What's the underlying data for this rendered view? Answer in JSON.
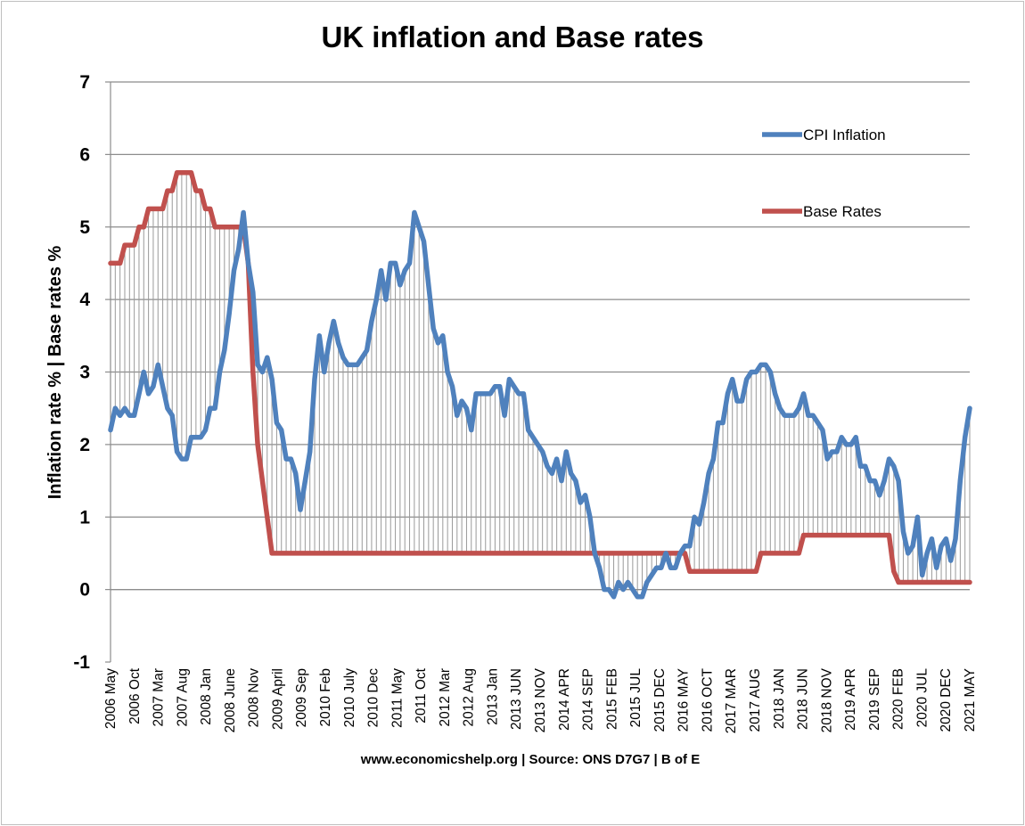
{
  "chart_data": {
    "type": "line",
    "title": "UK inflation and Base rates",
    "ylabel": "Inflation rate %  |  Base rates %",
    "source": "www.economicshelp.org | Source: ONS D7G7  |  B of E",
    "ylim": [
      -1,
      7
    ],
    "yticks": [
      "-1",
      "0",
      "1",
      "2",
      "3",
      "4",
      "5",
      "6",
      "7"
    ],
    "grid": "horizontal",
    "legend_position": "top-right",
    "x_start": "2006-05",
    "x_end": "2021-05",
    "xticks": [
      "2006 May",
      "2006 Oct",
      "2007 Mar",
      "2007 Aug",
      "2008 Jan",
      "2008 June",
      "2008 Nov",
      "2009 April",
      "2009  Sep",
      "2010 Feb",
      "2010 July",
      "2010 Dec",
      "2011 May",
      "2011 Oct",
      "2012 Mar",
      "2012 Aug",
      "2013 Jan",
      "2013 JUN",
      "2013 NOV",
      "2014 APR",
      "2014 SEP",
      "2015 FEB",
      "2015 JUL",
      "2015 DEC",
      "2016 MAY",
      "2016 OCT",
      "2017 MAR",
      "2017 AUG",
      "2018 JAN",
      "2018 JUN",
      "2018 NOV",
      "2019 APR",
      "2019 SEP",
      "2020 FEB",
      "2020 JUL",
      "2020 DEC",
      "2021 MAY"
    ],
    "series": [
      {
        "name": "CPI Inflation",
        "color": "#4f81bd",
        "values": [
          2.2,
          2.5,
          2.4,
          2.5,
          2.4,
          2.4,
          2.7,
          3.0,
          2.7,
          2.8,
          3.1,
          2.8,
          2.5,
          2.4,
          1.9,
          1.8,
          1.8,
          2.1,
          2.1,
          2.1,
          2.2,
          2.5,
          2.5,
          3.0,
          3.3,
          3.8,
          4.4,
          4.7,
          5.2,
          4.5,
          4.1,
          3.1,
          3.0,
          3.2,
          2.9,
          2.3,
          2.2,
          1.8,
          1.8,
          1.6,
          1.1,
          1.5,
          1.9,
          2.9,
          3.5,
          3.0,
          3.4,
          3.7,
          3.4,
          3.2,
          3.1,
          3.1,
          3.1,
          3.2,
          3.3,
          3.7,
          4.0,
          4.4,
          4.0,
          4.5,
          4.5,
          4.2,
          4.4,
          4.5,
          5.2,
          5.0,
          4.8,
          4.2,
          3.6,
          3.4,
          3.5,
          3.0,
          2.8,
          2.4,
          2.6,
          2.5,
          2.2,
          2.7,
          2.7,
          2.7,
          2.7,
          2.8,
          2.8,
          2.4,
          2.9,
          2.8,
          2.7,
          2.7,
          2.2,
          2.1,
          2.0,
          1.9,
          1.7,
          1.6,
          1.8,
          1.5,
          1.9,
          1.6,
          1.5,
          1.2,
          1.3,
          1.0,
          0.5,
          0.3,
          0.0,
          0.0,
          -0.1,
          0.1,
          0.0,
          0.1,
          0.0,
          -0.1,
          -0.1,
          0.1,
          0.2,
          0.3,
          0.3,
          0.5,
          0.3,
          0.3,
          0.5,
          0.6,
          0.6,
          1.0,
          0.9,
          1.2,
          1.6,
          1.8,
          2.3,
          2.3,
          2.7,
          2.9,
          2.6,
          2.6,
          2.9,
          3.0,
          3.0,
          3.1,
          3.1,
          3.0,
          2.7,
          2.5,
          2.4,
          2.4,
          2.4,
          2.5,
          2.7,
          2.4,
          2.4,
          2.3,
          2.2,
          1.8,
          1.9,
          1.9,
          2.1,
          2.0,
          2.0,
          2.1,
          1.7,
          1.7,
          1.5,
          1.5,
          1.3,
          1.5,
          1.8,
          1.7,
          1.5,
          0.8,
          0.5,
          0.6,
          1.0,
          0.2,
          0.5,
          0.7,
          0.3,
          0.6,
          0.7,
          0.4,
          0.7,
          1.5,
          2.1,
          2.5
        ]
      },
      {
        "name": "Base Rates",
        "color": "#c0504d",
        "values": [
          4.5,
          4.5,
          4.5,
          4.75,
          4.75,
          4.75,
          5.0,
          5.0,
          5.25,
          5.25,
          5.25,
          5.25,
          5.5,
          5.5,
          5.75,
          5.75,
          5.75,
          5.75,
          5.5,
          5.5,
          5.25,
          5.25,
          5.0,
          5.0,
          5.0,
          5.0,
          5.0,
          5.0,
          5.0,
          4.5,
          3.0,
          2.0,
          1.5,
          1.0,
          0.5,
          0.5,
          0.5,
          0.5,
          0.5,
          0.5,
          0.5,
          0.5,
          0.5,
          0.5,
          0.5,
          0.5,
          0.5,
          0.5,
          0.5,
          0.5,
          0.5,
          0.5,
          0.5,
          0.5,
          0.5,
          0.5,
          0.5,
          0.5,
          0.5,
          0.5,
          0.5,
          0.5,
          0.5,
          0.5,
          0.5,
          0.5,
          0.5,
          0.5,
          0.5,
          0.5,
          0.5,
          0.5,
          0.5,
          0.5,
          0.5,
          0.5,
          0.5,
          0.5,
          0.5,
          0.5,
          0.5,
          0.5,
          0.5,
          0.5,
          0.5,
          0.5,
          0.5,
          0.5,
          0.5,
          0.5,
          0.5,
          0.5,
          0.5,
          0.5,
          0.5,
          0.5,
          0.5,
          0.5,
          0.5,
          0.5,
          0.5,
          0.5,
          0.5,
          0.5,
          0.5,
          0.5,
          0.5,
          0.5,
          0.5,
          0.5,
          0.5,
          0.5,
          0.5,
          0.5,
          0.5,
          0.5,
          0.5,
          0.5,
          0.5,
          0.5,
          0.5,
          0.5,
          0.25,
          0.25,
          0.25,
          0.25,
          0.25,
          0.25,
          0.25,
          0.25,
          0.25,
          0.25,
          0.25,
          0.25,
          0.25,
          0.25,
          0.25,
          0.5,
          0.5,
          0.5,
          0.5,
          0.5,
          0.5,
          0.5,
          0.5,
          0.5,
          0.75,
          0.75,
          0.75,
          0.75,
          0.75,
          0.75,
          0.75,
          0.75,
          0.75,
          0.75,
          0.75,
          0.75,
          0.75,
          0.75,
          0.75,
          0.75,
          0.75,
          0.75,
          0.75,
          0.25,
          0.1,
          0.1,
          0.1,
          0.1,
          0.1,
          0.1,
          0.1,
          0.1,
          0.1,
          0.1,
          0.1,
          0.1,
          0.1,
          0.1,
          0.1,
          0.1
        ]
      }
    ]
  }
}
